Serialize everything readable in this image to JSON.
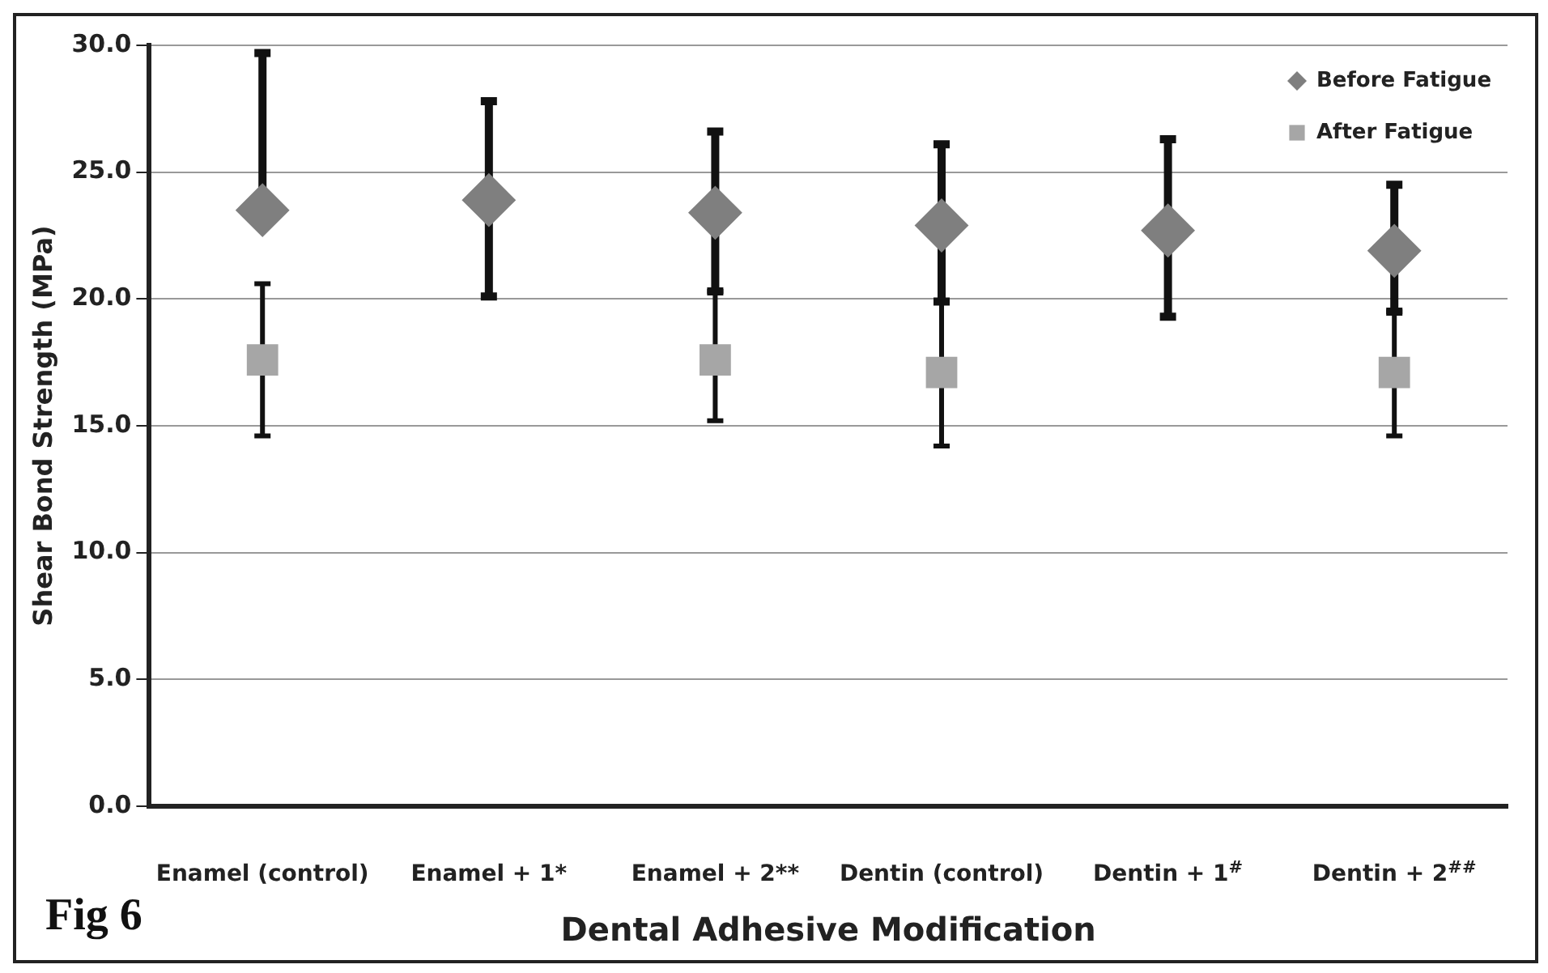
{
  "chart_data": {
    "type": "scatter",
    "xlabel": "Dental Adhesive Modification",
    "ylabel": "Shear Bond Strength (MPa)",
    "categories": [
      "Enamel (control)",
      "Enamel + 1*",
      "Enamel + 2**",
      "Dentin (control)",
      "Dentin + 1$^{#}$",
      "Dentin + 2$^{##}$"
    ],
    "series": [
      {
        "name": "Before Fatigue",
        "color": "#7f7f7f",
        "marker": "diamond",
        "values": [
          23.5,
          23.9,
          23.4,
          22.9,
          22.7,
          21.9
        ],
        "errors": [
          [
            23.5,
            29.7
          ],
          [
            20.1,
            27.8
          ],
          [
            20.3,
            26.6
          ],
          [
            19.9,
            26.1
          ],
          [
            19.3,
            26.3
          ],
          [
            19.5,
            24.5
          ]
        ]
      },
      {
        "name": "After Fatigue",
        "color": "#a6a6a6",
        "marker": "square",
        "values": [
          17.6,
          null,
          17.6,
          17.1,
          null,
          17.1
        ],
        "errors": [
          [
            14.6,
            20.6
          ],
          null,
          [
            15.2,
            20.3
          ],
          [
            14.2,
            19.9
          ],
          null,
          [
            14.6,
            19.5
          ]
        ]
      }
    ],
    "ylim": [
      0,
      30
    ],
    "yticks": [
      {
        "value": 0,
        "label": "0.0"
      },
      {
        "value": 5,
        "label": "5.0"
      },
      {
        "value": 10,
        "label": "10.0"
      },
      {
        "value": 15,
        "label": "15.0"
      },
      {
        "value": 20,
        "label": "20.0"
      },
      {
        "value": 25,
        "label": "25.0"
      },
      {
        "value": 30,
        "label": "30.0"
      }
    ],
    "grid": "y",
    "legend": "top right",
    "annotations": [
      "Fig 6"
    ]
  }
}
